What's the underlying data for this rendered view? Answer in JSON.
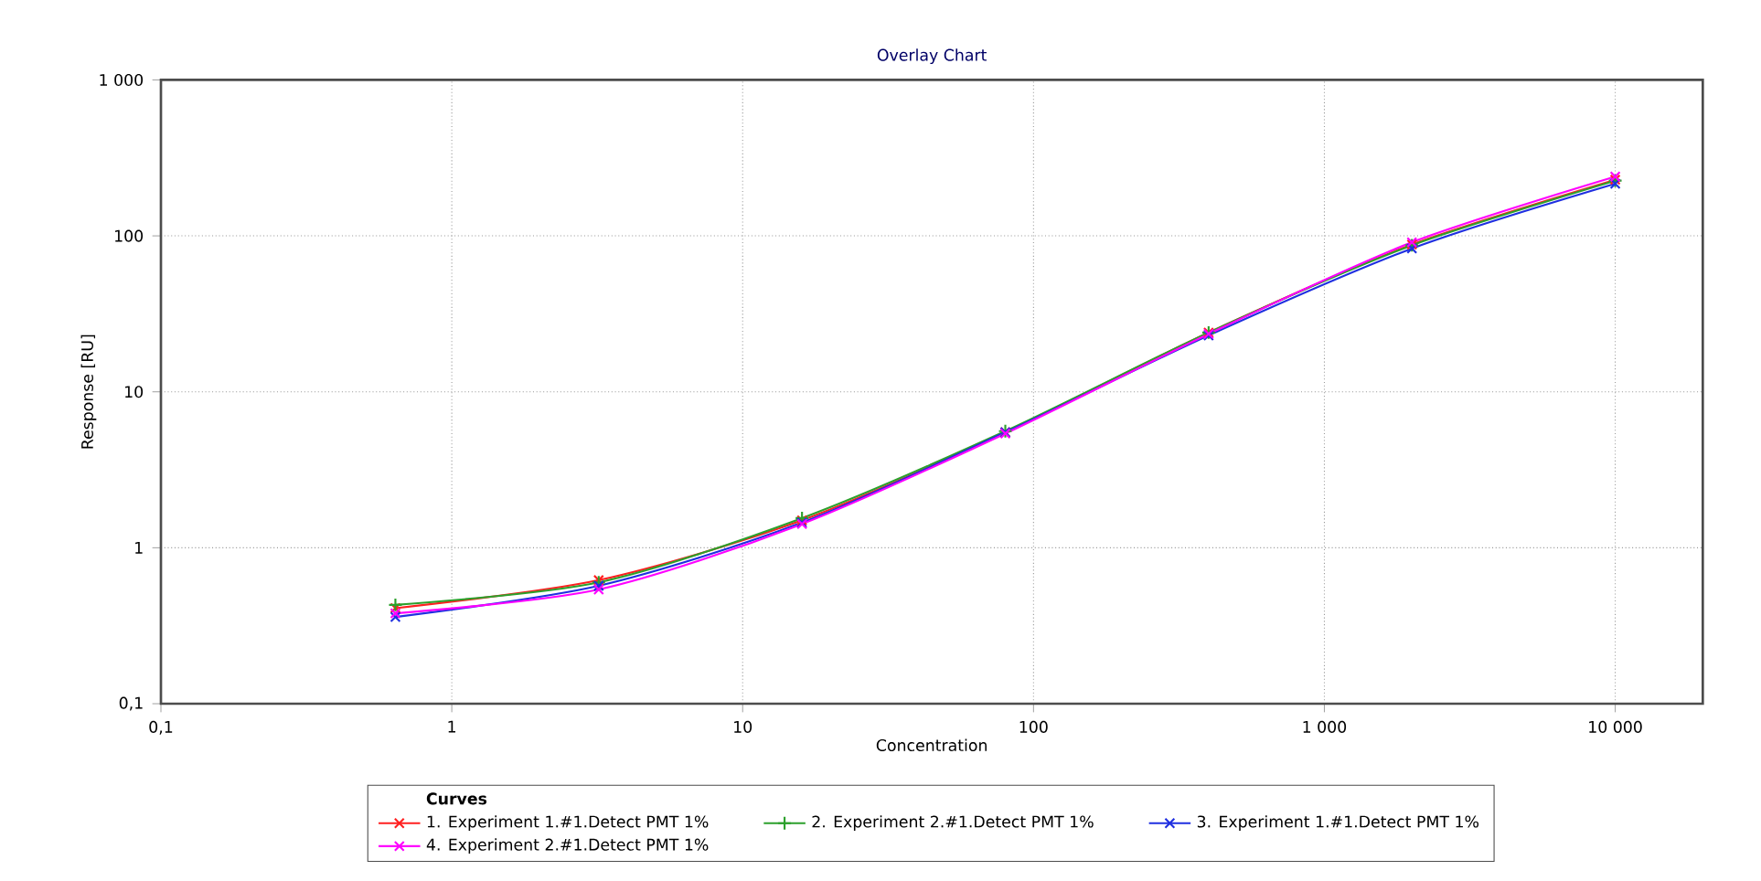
{
  "chart_data": {
    "type": "line",
    "title": "Overlay Chart",
    "xlabel": "Concentration",
    "ylabel": "Response [RU]",
    "legend_title": "Curves",
    "log": "xy",
    "grid": true,
    "legend": "bottom",
    "line_style": "solid",
    "x": [
      0.64,
      3.2,
      16,
      80,
      400,
      2000,
      10000
    ],
    "xlim": [
      0.1,
      20000
    ],
    "ylim": [
      0.1,
      1000
    ],
    "xticks": [
      {
        "value": 0.1,
        "label": "0,1"
      },
      1,
      10,
      100,
      {
        "value": 1000,
        "label": "1 000"
      },
      {
        "value": 10000,
        "label": "10 000"
      }
    ],
    "yticks": [
      {
        "value": 0.1,
        "label": "0,1"
      },
      1,
      10,
      100,
      {
        "value": 1000,
        "label": "1 000"
      }
    ],
    "series": [
      {
        "name": "1. Experiment 1.#1.Detect PMT 1%",
        "color": "#ff2020",
        "marker": "cross",
        "values": [
          0.41,
          0.62,
          1.5,
          5.5,
          24,
          88,
          229
        ]
      },
      {
        "name": "2. Experiment 2.#1.Detect PMT 1%",
        "color": "#2ca02c",
        "marker": "plus",
        "values": [
          0.43,
          0.6,
          1.55,
          5.6,
          24,
          87,
          226
        ]
      },
      {
        "name": "3. Experiment 1.#1.Detect PMT 1%",
        "color": "#1f2fe0",
        "marker": "cross",
        "values": [
          0.36,
          0.57,
          1.45,
          5.5,
          23,
          83,
          216
        ]
      },
      {
        "name": "4. Experiment 2.#1.Detect PMT 1%",
        "color": "#ff00ff",
        "marker": "cross",
        "values": [
          0.38,
          0.54,
          1.42,
          5.4,
          23.5,
          91,
          240
        ]
      }
    ]
  }
}
